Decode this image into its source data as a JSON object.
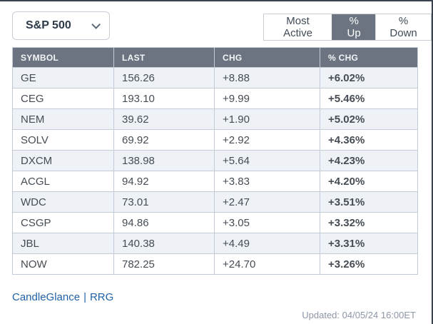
{
  "header": {
    "index_dropdown": {
      "value": "S&P 500"
    },
    "tabs": [
      {
        "label": "Most Active",
        "selected": false
      },
      {
        "label": "% Up",
        "selected": true
      },
      {
        "label": "% Down",
        "selected": false
      }
    ]
  },
  "table": {
    "columns": [
      "SYMBOL",
      "LAST",
      "CHG",
      "% CHG"
    ],
    "rows": [
      {
        "symbol": "GE",
        "last": "156.26",
        "chg": "+8.88",
        "pct_chg": "+6.02%"
      },
      {
        "symbol": "CEG",
        "last": "193.10",
        "chg": "+9.99",
        "pct_chg": "+5.46%"
      },
      {
        "symbol": "NEM",
        "last": "39.62",
        "chg": "+1.90",
        "pct_chg": "+5.02%"
      },
      {
        "symbol": "SOLV",
        "last": "69.92",
        "chg": "+2.92",
        "pct_chg": "+4.36%"
      },
      {
        "symbol": "DXCM",
        "last": "138.98",
        "chg": "+5.64",
        "pct_chg": "+4.23%"
      },
      {
        "symbol": "ACGL",
        "last": "94.92",
        "chg": "+3.83",
        "pct_chg": "+4.20%"
      },
      {
        "symbol": "WDC",
        "last": "73.01",
        "chg": "+2.47",
        "pct_chg": "+3.51%"
      },
      {
        "symbol": "CSGP",
        "last": "94.86",
        "chg": "+3.05",
        "pct_chg": "+3.32%"
      },
      {
        "symbol": "JBL",
        "last": "140.38",
        "chg": "+4.49",
        "pct_chg": "+3.31%"
      },
      {
        "symbol": "NOW",
        "last": "782.25",
        "chg": "+24.70",
        "pct_chg": "+3.26%"
      }
    ]
  },
  "footer": {
    "link_candleglance": "CandleGlance",
    "separator": "|",
    "link_rrg": "RRG",
    "updated": "Updated: 04/05/24 16:00ET"
  },
  "colors": {
    "header_bg": "#6b7480",
    "selected_tab_bg": "#6b7480",
    "row_stripe": "#eef2f7",
    "table_border": "#c3ccd6",
    "symbol_link": "#1c4c7c",
    "footer_link": "#2062a8",
    "positive_chg": "#2f7d53",
    "positive_pct_chg": "#186a42",
    "updated_text": "#8d97a6",
    "widget_edge": "#39424d"
  }
}
